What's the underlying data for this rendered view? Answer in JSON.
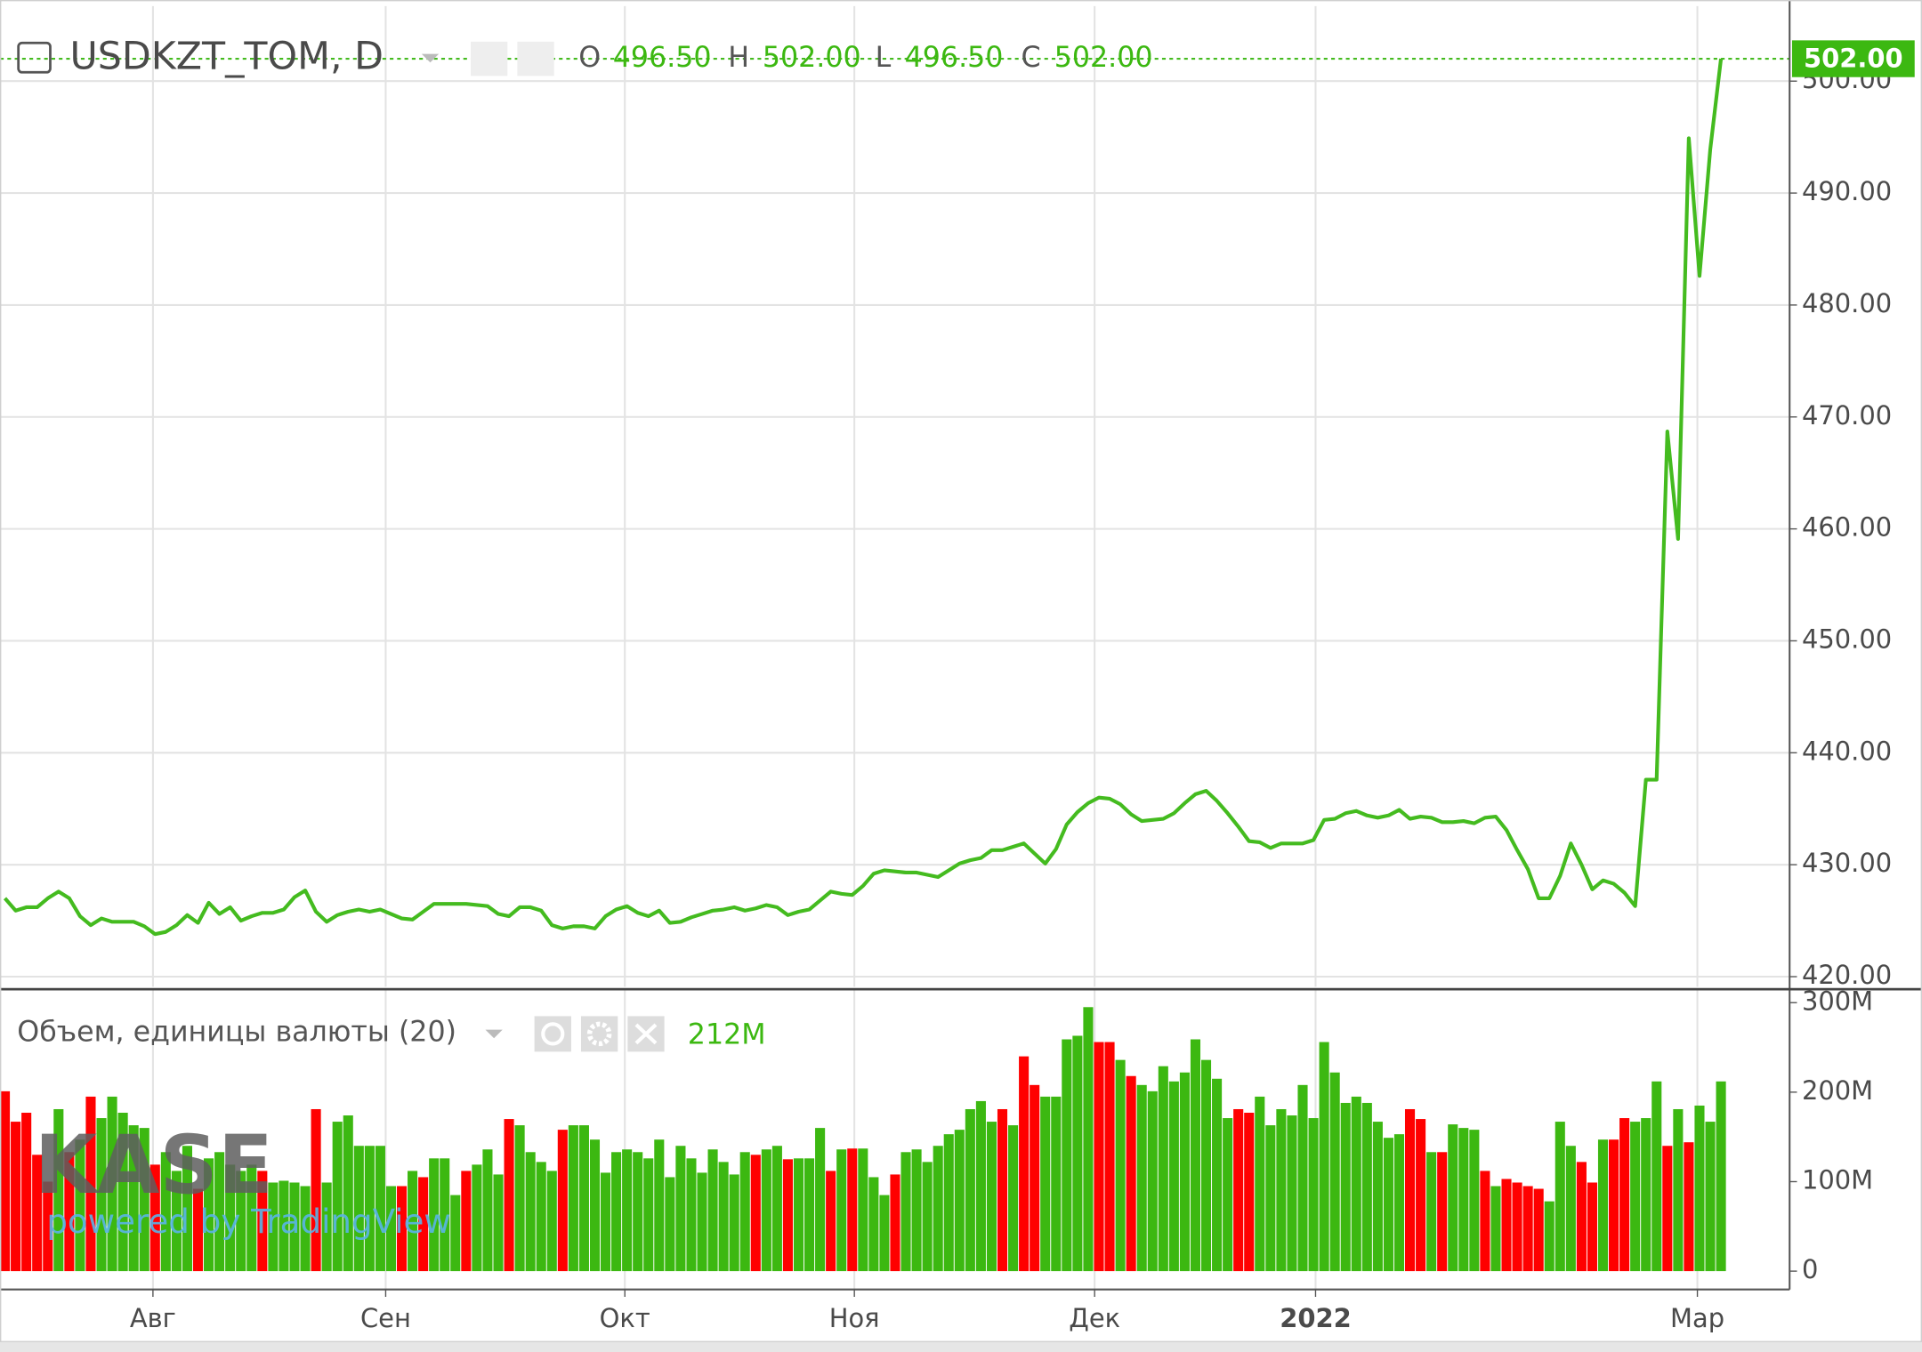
{
  "chart_data": [
    {
      "type": "line",
      "title": "USDKZT_TOM, D",
      "ohlc": {
        "names": [
          "O",
          "H",
          "L",
          "C"
        ],
        "values": [
          496.5,
          502,
          496.5,
          502
        ],
        "value_labels": [
          "496.50",
          "502.00",
          "496.50",
          "502.00"
        ]
      },
      "series": [
        {
          "color": "#44bb1f",
          "values": [
            427.0,
            425.9,
            426.2,
            426.2,
            427.0,
            427.6,
            427.0,
            425.4,
            424.6,
            425.2,
            424.9,
            424.9,
            424.9,
            424.5,
            423.8,
            424.0,
            424.6,
            425.5,
            424.8,
            426.6,
            425.6,
            426.2,
            425.0,
            425.4,
            425.7,
            425.7,
            426.0,
            427.1,
            427.7,
            425.8,
            424.9,
            425.5,
            425.8,
            426.0,
            425.8,
            426.0,
            425.6,
            425.2,
            425.1,
            425.8,
            426.5,
            426.5,
            426.5,
            426.5,
            426.4,
            426.3,
            425.6,
            425.4,
            426.2,
            426.2,
            425.9,
            424.6,
            424.3,
            424.5,
            424.5,
            424.3,
            425.4,
            426.0,
            426.3,
            425.7,
            425.4,
            425.9,
            424.8,
            424.9,
            425.3,
            425.6,
            425.9,
            426.0,
            426.2,
            425.9,
            426.1,
            426.4,
            426.2,
            425.5,
            425.8,
            426.0,
            426.8,
            427.6,
            427.4,
            427.3,
            428.1,
            429.2,
            429.5,
            429.4,
            429.3,
            429.3,
            429.1,
            428.9,
            429.5,
            430.1,
            430.4,
            430.6,
            431.3,
            431.3,
            431.6,
            431.9,
            431.0,
            430.1,
            431.4,
            433.6,
            434.7,
            435.5,
            436.0,
            435.9,
            435.4,
            434.5,
            433.9,
            434.0,
            434.1,
            434.6,
            435.5,
            436.3,
            436.6,
            435.7,
            434.6,
            433.4,
            432.1,
            432.0,
            431.5,
            431.9,
            431.9,
            431.9,
            432.2,
            434.0,
            434.1,
            434.6,
            434.8,
            434.4,
            434.2,
            434.4,
            434.9,
            434.1,
            434.3,
            434.2,
            433.8,
            433.8,
            433.9,
            433.7,
            434.2,
            434.3,
            433.1,
            431.3,
            429.6,
            427.0,
            427.0,
            429.0,
            431.9,
            430.0,
            427.8,
            428.6,
            428.3,
            427.5,
            426.3,
            437.6,
            437.6,
            468.7,
            459.1,
            494.9,
            482.6,
            493.9,
            502.0
          ]
        }
      ],
      "ylim": [
        419.1,
        506.7
      ],
      "yticks": [
        {
          "value": 420,
          "label": "420.00"
        },
        {
          "value": 430,
          "label": "430.00"
        },
        {
          "value": 440,
          "label": "440.00"
        },
        {
          "value": 450,
          "label": "450.00"
        },
        {
          "value": 460,
          "label": "460.00"
        },
        {
          "value": 470,
          "label": "470.00"
        },
        {
          "value": 480,
          "label": "480.00"
        },
        {
          "value": 490,
          "label": "490.00"
        },
        {
          "value": 500,
          "label": "500.00"
        }
      ],
      "grid": true
    },
    {
      "type": "bar",
      "legend_value": {
        "value": 212,
        "label": "212M"
      },
      "watermark": "KASE",
      "watermark_sub": "powered by TradingView",
      "series": [
        {
          "name": "Объем, единицы валюты (20)",
          "values": [
            201,
            167,
            177,
            130,
            100,
            181,
            133,
            147,
            195,
            171,
            195,
            177,
            163,
            160,
            119,
            133,
            112,
            140,
            92,
            126,
            133,
            119,
            112,
            119,
            112,
            99,
            101,
            99,
            95,
            181,
            99,
            167,
            174,
            140,
            140,
            140,
            95,
            95,
            112,
            105,
            126,
            126,
            85,
            112,
            119,
            136,
            108,
            170,
            163,
            133,
            122,
            112,
            158,
            163,
            163,
            147,
            110,
            133,
            136,
            133,
            126,
            147,
            105,
            140,
            126,
            110,
            136,
            122,
            108,
            133,
            130,
            136,
            140,
            125,
            126,
            126,
            160,
            112,
            136,
            137,
            137,
            105,
            85,
            108,
            133,
            136,
            122,
            140,
            153,
            158,
            181,
            190,
            167,
            181,
            163,
            240,
            208,
            195,
            195,
            259,
            263,
            295,
            256,
            256,
            236,
            218,
            208,
            201,
            229,
            212,
            222,
            259,
            236,
            215,
            171,
            181,
            177,
            195,
            163,
            181,
            174,
            208,
            171,
            256,
            222,
            188,
            195,
            188,
            167,
            149,
            153,
            181,
            170,
            133,
            133,
            164,
            160,
            158,
            112,
            95,
            103,
            99,
            95,
            92,
            78,
            167,
            140,
            122,
            99,
            147,
            147,
            171,
            167,
            171,
            212,
            140,
            181,
            144,
            185,
            167,
            212
          ],
          "colors": [
            "#ff0000",
            "#ff0000",
            "#ff0000",
            "#ff0000",
            "#ff0000",
            "#3cb811",
            "#ff0000",
            "#3cb811",
            "#ff0000",
            "#3cb811",
            "#3cb811",
            "#3cb811",
            "#3cb811",
            "#3cb811",
            "#ff0000",
            "#3cb811",
            "#3cb811",
            "#3cb811",
            "#ff0000",
            "#3cb811",
            "#3cb811",
            "#3cb811",
            "#3cb811",
            "#3cb811",
            "#ff0000",
            "#3cb811",
            "#3cb811",
            "#3cb811",
            "#3cb811",
            "#ff0000",
            "#3cb811",
            "#3cb811",
            "#3cb811",
            "#3cb811",
            "#3cb811",
            "#3cb811",
            "#3cb811",
            "#ff0000",
            "#3cb811",
            "#ff0000",
            "#3cb811",
            "#3cb811",
            "#3cb811",
            "#ff0000",
            "#3cb811",
            "#3cb811",
            "#3cb811",
            "#ff0000",
            "#3cb811",
            "#3cb811",
            "#3cb811",
            "#3cb811",
            "#ff0000",
            "#3cb811",
            "#3cb811",
            "#3cb811",
            "#3cb811",
            "#3cb811",
            "#3cb811",
            "#3cb811",
            "#3cb811",
            "#3cb811",
            "#3cb811",
            "#3cb811",
            "#3cb811",
            "#3cb811",
            "#3cb811",
            "#3cb811",
            "#3cb811",
            "#3cb811",
            "#ff0000",
            "#3cb811",
            "#3cb811",
            "#ff0000",
            "#3cb811",
            "#3cb811",
            "#3cb811",
            "#ff0000",
            "#3cb811",
            "#ff0000",
            "#3cb811",
            "#3cb811",
            "#3cb811",
            "#ff0000",
            "#3cb811",
            "#3cb811",
            "#3cb811",
            "#3cb811",
            "#3cb811",
            "#3cb811",
            "#3cb811",
            "#3cb811",
            "#3cb811",
            "#ff0000",
            "#3cb811",
            "#ff0000",
            "#ff0000",
            "#3cb811",
            "#3cb811",
            "#3cb811",
            "#3cb811",
            "#3cb811",
            "#ff0000",
            "#ff0000",
            "#3cb811",
            "#ff0000",
            "#3cb811",
            "#3cb811",
            "#3cb811",
            "#3cb811",
            "#3cb811",
            "#3cb811",
            "#3cb811",
            "#3cb811",
            "#3cb811",
            "#ff0000",
            "#ff0000",
            "#3cb811",
            "#3cb811",
            "#3cb811",
            "#3cb811",
            "#3cb811",
            "#3cb811",
            "#3cb811",
            "#3cb811",
            "#3cb811",
            "#3cb811",
            "#3cb811",
            "#3cb811",
            "#3cb811",
            "#3cb811",
            "#ff0000",
            "#ff0000",
            "#3cb811",
            "#ff0000",
            "#3cb811",
            "#3cb811",
            "#3cb811",
            "#ff0000",
            "#3cb811",
            "#ff0000",
            "#ff0000",
            "#ff0000",
            "#ff0000",
            "#3cb811",
            "#3cb811",
            "#3cb811",
            "#ff0000",
            "#ff0000",
            "#3cb811",
            "#ff0000",
            "#ff0000",
            "#3cb811",
            "#3cb811",
            "#3cb811",
            "#ff0000",
            "#3cb811",
            "#ff0000",
            "#3cb811",
            "#3cb811",
            "#3cb811"
          ]
        }
      ],
      "ylim": [
        -20.5,
        313.7
      ],
      "yticks": [
        0,
        {
          "value": 100,
          "label": "100M"
        },
        {
          "value": 200,
          "label": "200M"
        },
        {
          "value": 300,
          "label": "300M"
        }
      ],
      "xlim": [
        -0.46,
        166.4
      ],
      "xticks": [
        {
          "value": 13.8,
          "label": "Авг"
        },
        {
          "value": 35.5,
          "label": "Сен"
        },
        {
          "value": 57.8,
          "label": "Окт"
        },
        {
          "value": 79.2,
          "label": "Ноя"
        },
        {
          "value": 101.6,
          "label": "Дек"
        },
        {
          "value": 122.2,
          "label": "2022"
        },
        {
          "value": 157.8,
          "label": "Мар"
        }
      ]
    }
  ]
}
